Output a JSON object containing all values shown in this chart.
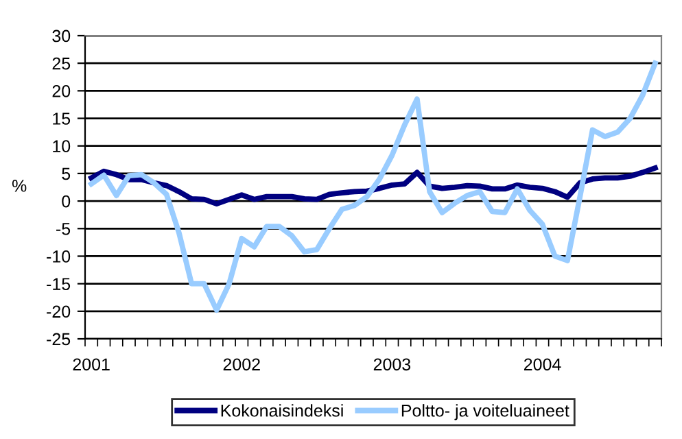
{
  "chart_data": {
    "type": "line",
    "ylabel": "%",
    "categories": [
      "2001",
      null,
      null,
      null,
      null,
      null,
      null,
      null,
      null,
      null,
      null,
      null,
      "2002",
      null,
      null,
      null,
      null,
      null,
      null,
      null,
      null,
      null,
      null,
      null,
      "2003",
      null,
      null,
      null,
      null,
      null,
      null,
      null,
      null,
      null,
      null,
      null,
      "2004",
      null,
      null,
      null,
      null,
      null,
      null,
      null,
      null,
      null
    ],
    "series": [
      {
        "name": "Kokonaisindeksi",
        "color": "#000080",
        "values": [
          4.2,
          5.4,
          4.8,
          3.9,
          3.9,
          3.3,
          2.8,
          1.7,
          0.4,
          0.3,
          -0.5,
          0.3,
          1.1,
          0.3,
          0.8,
          0.8,
          0.8,
          0.4,
          0.3,
          1.2,
          1.5,
          1.7,
          1.8,
          2.3,
          2.9,
          3.1,
          5.2,
          2.7,
          2.3,
          2.5,
          2.8,
          2.7,
          2.2,
          2.2,
          2.9,
          2.5,
          2.3,
          1.7,
          0.7,
          3.3,
          4.0,
          4.2,
          4.2,
          4.5,
          5.2,
          6.0
        ]
      },
      {
        "name": "Poltto- ja voiteluaineet",
        "color": "#99ccff",
        "values": [
          3.1,
          4.7,
          1.0,
          4.6,
          4.8,
          3.3,
          1.2,
          -5.8,
          -15,
          -15,
          -19.8,
          -15,
          -6.8,
          -8.3,
          -4.6,
          -4.6,
          -6.3,
          -9.2,
          -8.8,
          -5,
          -1.5,
          -0.8,
          0.8,
          4.0,
          8.3,
          13.8,
          18.5,
          1.7,
          -2.1,
          -0.4,
          1.0,
          1.7,
          -1.9,
          -2.1,
          2.2,
          -1.7,
          -4.2,
          -10,
          -10.8,
          0.8,
          12.9,
          11.7,
          12.5,
          15,
          19.2,
          25
        ]
      }
    ],
    "ylim": [
      -25,
      30
    ],
    "yticks": [
      -25,
      -20,
      -15,
      -10,
      -5,
      0,
      5,
      10,
      15,
      20,
      25,
      30
    ],
    "grid": "y",
    "legend": "bottom",
    "marker": "none",
    "line_style": "solid"
  }
}
